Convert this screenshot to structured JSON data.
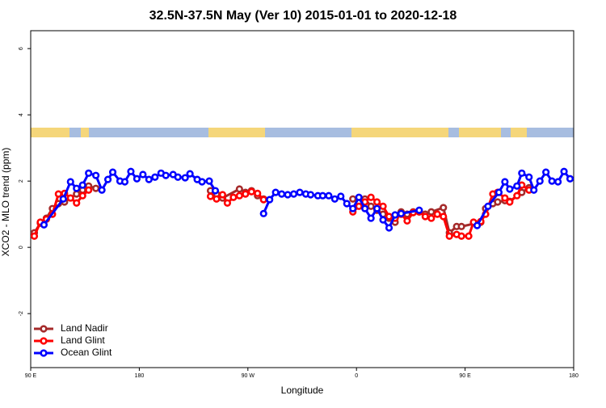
{
  "chart_data": {
    "type": "line",
    "title": "32.5N-37.5N May (Ver 10)   2015-01-01 to 2020-12-18",
    "x_label": "Longitude",
    "y_label": "XCO2 - MLO trend (ppm)",
    "xlim": [
      90,
      540
    ],
    "ylim": [
      -3.63,
      6.54
    ],
    "xticks": [
      {
        "value": 90,
        "label": "90 E"
      },
      180,
      {
        "value": 270,
        "label": "90 W"
      },
      {
        "value": 360,
        "label": "0"
      },
      {
        "value": 450,
        "label": "90 E"
      },
      180
    ],
    "yticks": [
      -2,
      0,
      2,
      4,
      6
    ],
    "legend": "bottom-left",
    "series": [
      {
        "name": "Land Nadir",
        "color": "#a52a2a",
        "x": [
          93,
          98,
          103,
          108,
          113,
          118,
          128,
          133,
          138,
          144,
          null,
          239,
          244,
          249,
          263,
          268,
          273,
          278,
          283,
          null,
          357,
          367,
          372,
          377,
          382,
          387,
          392,
          397,
          402,
          407,
          412,
          417,
          422,
          432,
          437,
          443,
          447,
          463,
          467,
          473,
          477,
          483,
          487,
          497,
          503
        ],
        "values": [
          0.44,
          0.73,
          0.88,
          1.17,
          1.32,
          1.37,
          1.61,
          1.73,
          1.85,
          1.78,
          null,
          1.71,
          1.61,
          1.49,
          1.76,
          1.66,
          1.71,
          1.56,
          1.46,
          null,
          1.46,
          1.46,
          1.24,
          1.12,
          1.0,
          0.88,
          0.76,
          1.07,
          1.0,
          1.07,
          1.07,
          1.0,
          1.07,
          1.2,
          0.44,
          0.63,
          0.63,
          0.76,
          1.17,
          1.32,
          1.37,
          1.41,
          1.39,
          1.66,
          1.8
        ]
      },
      {
        "name": "Land Glint",
        "color": "#ff0000",
        "x": [
          93,
          98,
          103,
          108,
          113,
          118,
          123,
          128,
          133,
          138,
          null,
          239,
          244,
          249,
          253,
          258,
          263,
          268,
          273,
          278,
          283,
          null,
          357,
          362,
          367,
          372,
          377,
          382,
          387,
          392,
          397,
          402,
          407,
          412,
          417,
          422,
          427,
          432,
          437,
          443,
          447,
          453,
          457,
          463,
          467,
          473,
          477,
          483,
          487,
          493,
          497,
          503
        ],
        "values": [
          0.34,
          0.76,
          0.85,
          1.0,
          1.61,
          1.63,
          1.49,
          1.34,
          1.56,
          1.73,
          null,
          1.54,
          1.46,
          1.59,
          1.34,
          1.51,
          1.56,
          1.61,
          1.68,
          1.63,
          1.44,
          null,
          1.07,
          1.24,
          1.37,
          1.51,
          1.37,
          1.24,
          0.93,
          0.88,
          1.0,
          0.8,
          1.05,
          1.07,
          0.93,
          0.88,
          1.0,
          0.93,
          0.34,
          0.39,
          0.34,
          0.34,
          0.76,
          0.78,
          1.0,
          1.61,
          1.66,
          1.49,
          1.37,
          1.56,
          1.88,
          1.73
        ]
      },
      {
        "name": "Ocean Glint",
        "color": "#0000ff",
        "x": [
          101,
          117,
          123,
          128,
          133,
          138,
          144,
          149,
          154,
          158,
          164,
          168,
          173,
          178,
          183,
          188,
          193,
          198,
          202,
          208,
          212,
          218,
          222,
          228,
          232,
          238,
          243,
          null,
          283,
          288,
          293,
          298,
          303,
          308,
          313,
          318,
          322,
          328,
          332,
          337,
          342,
          347,
          352,
          357,
          362,
          367,
          372,
          377,
          382,
          387,
          392,
          397,
          412,
          null,
          460,
          469,
          478,
          483,
          487,
          493,
          497,
          503,
          507,
          512,
          517,
          522,
          527,
          532,
          537
        ],
        "values": [
          0.68,
          1.46,
          1.98,
          1.78,
          1.88,
          2.24,
          2.17,
          1.73,
          2.05,
          2.27,
          2.0,
          1.98,
          2.29,
          2.07,
          2.2,
          2.05,
          2.12,
          2.24,
          2.17,
          2.2,
          2.12,
          2.1,
          2.22,
          2.05,
          1.98,
          2.0,
          1.71,
          null,
          1.02,
          1.44,
          1.66,
          1.61,
          1.59,
          1.61,
          1.66,
          1.61,
          1.59,
          1.56,
          1.56,
          1.56,
          1.46,
          1.54,
          1.32,
          1.17,
          1.51,
          1.17,
          0.88,
          1.17,
          0.83,
          0.59,
          0.98,
          1.02,
          1.12,
          null,
          0.66,
          1.24,
          1.66,
          1.98,
          1.76,
          1.85,
          2.24,
          2.12,
          1.73,
          2.0,
          2.27,
          2.0,
          1.98,
          2.29,
          2.07
        ]
      }
    ]
  }
}
